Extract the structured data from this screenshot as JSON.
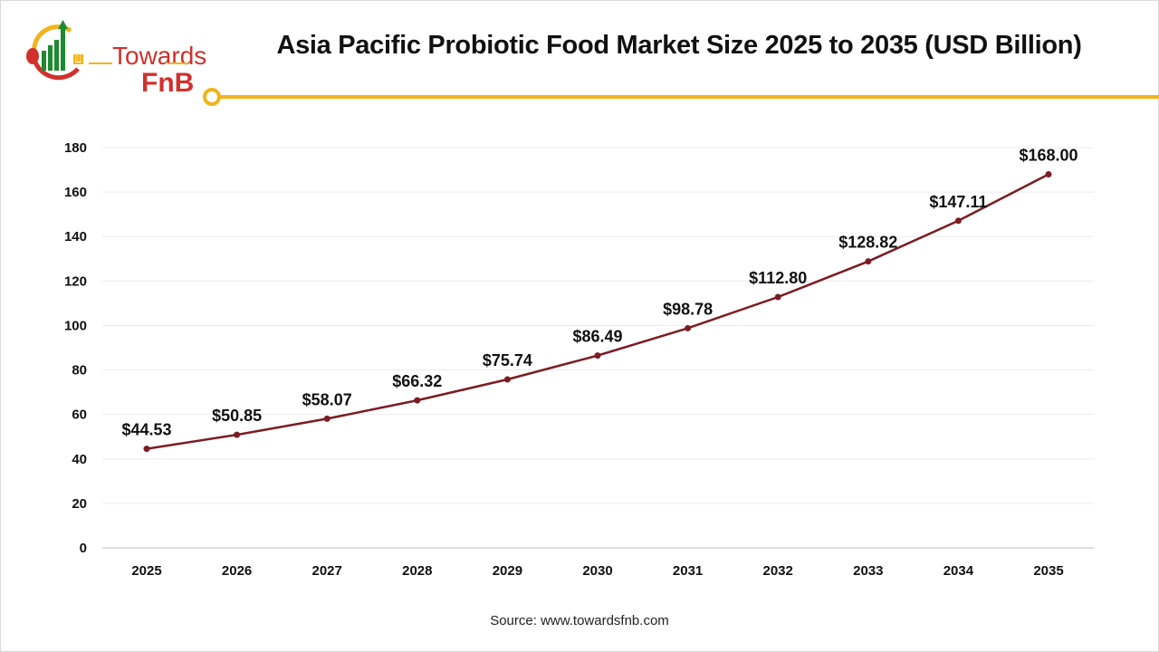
{
  "header": {
    "title": "Asia Pacific Probiotic Food Market Size 2025 to 2035 (USD Billion)"
  },
  "logo": {
    "line1": "Towards",
    "line2": "FnB"
  },
  "footer": {
    "source": "Source: www.towardsfnb.com"
  },
  "colors": {
    "line": "#7b1c24",
    "accent": "#f2b31c",
    "logo_red": "#d0312d",
    "logo_green": "#1e8a2e"
  },
  "chart_data": {
    "type": "line",
    "title": "Asia Pacific Probiotic Food Market Size 2025 to 2035 (USD Billion)",
    "categories": [
      "2025",
      "2026",
      "2027",
      "2028",
      "2029",
      "2030",
      "2031",
      "2032",
      "2033",
      "2034",
      "2035"
    ],
    "values": [
      44.53,
      50.85,
      58.07,
      66.32,
      75.74,
      86.49,
      98.78,
      112.8,
      128.82,
      147.11,
      168.0
    ],
    "data_labels": [
      "$44.53",
      "$50.85",
      "$58.07",
      "$66.32",
      "$75.74",
      "$86.49",
      "$98.78",
      "$112.80",
      "$128.82",
      "$147.11",
      "$168.00"
    ],
    "ylim": [
      0,
      180
    ],
    "yticks": [
      0,
      20,
      40,
      60,
      80,
      100,
      120,
      140,
      160,
      180
    ],
    "grid": true,
    "legend": "none"
  }
}
